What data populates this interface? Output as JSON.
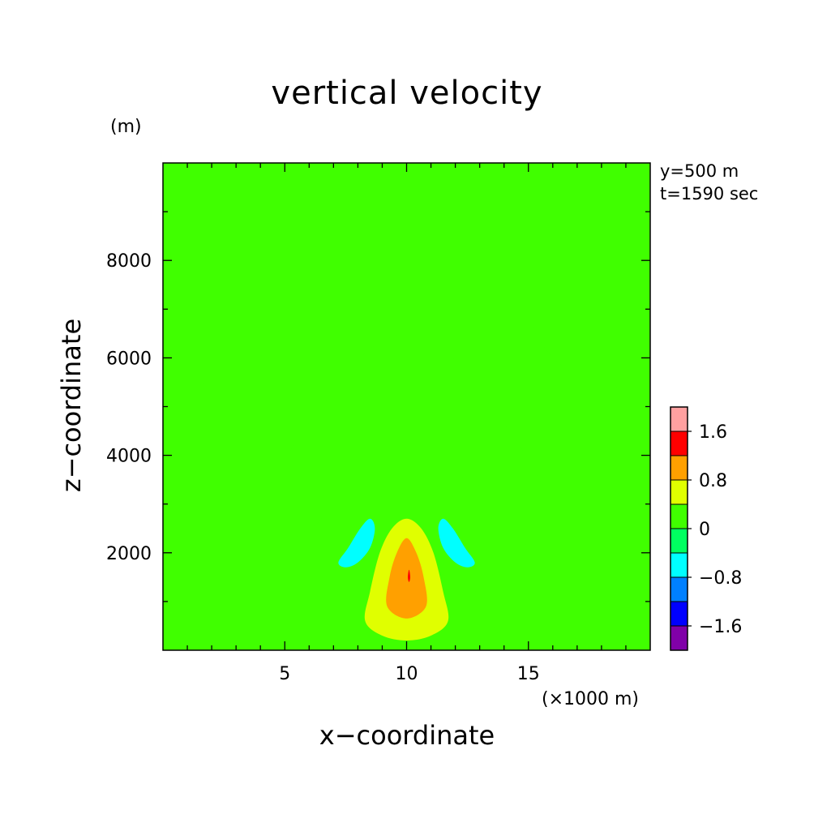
{
  "chart_data": {
    "type": "contour",
    "title": "vertical velocity",
    "xlabel": "x−coordinate",
    "ylabel": "z−coordinate",
    "x_unit": "(×1000 m)",
    "y_unit": "(m)",
    "annotations": [
      "y=500 m",
      "t=1590 sec"
    ],
    "xlim": [
      0,
      20
    ],
    "ylim": [
      0,
      10000
    ],
    "x_ticks": [
      5,
      10,
      15
    ],
    "x_tick_labels": [
      "5",
      "10",
      "15"
    ],
    "y_ticks": [
      2000,
      4000,
      6000,
      8000
    ],
    "y_tick_labels": [
      "2000",
      "4000",
      "6000",
      "8000"
    ],
    "colorbar": {
      "levels": [
        -2.0,
        -1.6,
        -1.2,
        -0.8,
        -0.4,
        0,
        0.4,
        0.8,
        1.2,
        1.6,
        2.0
      ],
      "colors": [
        "#8000a8",
        "#0000ff",
        "#0080ff",
        "#00ffff",
        "#00ff60",
        "#40ff00",
        "#e0ff00",
        "#ffa000",
        "#ff0000",
        "#ffa0a0"
      ],
      "tick_labels": [
        "−1.6",
        "−0.8",
        "0",
        "0.8",
        "1.6"
      ],
      "tick_values": [
        -1.6,
        -0.8,
        0,
        0.8,
        1.6
      ]
    },
    "background_value": 0,
    "regions": [
      {
        "name": "left-upper-positive",
        "value_range": [
          0,
          0.4
        ],
        "points": [
          [
            0,
            10000
          ],
          [
            5.1,
            10000
          ],
          [
            5.1,
            7500
          ],
          [
            5.0,
            7000
          ],
          [
            4.6,
            6400
          ],
          [
            3.5,
            5800
          ],
          [
            2.2,
            5600
          ],
          [
            0,
            5600
          ]
        ]
      },
      {
        "name": "right-upper-positive",
        "value_range": [
          0,
          0.4
        ],
        "points": [
          [
            20,
            10000
          ],
          [
            14.9,
            10000
          ],
          [
            14.9,
            7500
          ],
          [
            15.0,
            7000
          ],
          [
            15.4,
            6400
          ],
          [
            16.5,
            5800
          ],
          [
            17.8,
            5600
          ],
          [
            20,
            5600
          ]
        ]
      },
      {
        "name": "central-positive-plume",
        "value_range": [
          0,
          0.4
        ],
        "points": [
          [
            0,
            1500
          ],
          [
            0,
            2600
          ],
          [
            2.5,
            2900
          ],
          [
            4.2,
            3300
          ],
          [
            5.1,
            4000
          ],
          [
            6.2,
            4800
          ],
          [
            7.2,
            5400
          ],
          [
            8.3,
            6100
          ],
          [
            9.5,
            6450
          ],
          [
            10.5,
            6450
          ],
          [
            11.7,
            6100
          ],
          [
            12.8,
            5400
          ],
          [
            13.8,
            4800
          ],
          [
            14.9,
            4000
          ],
          [
            15.8,
            3300
          ],
          [
            17.5,
            2900
          ],
          [
            20,
            2600
          ],
          [
            20,
            1500
          ],
          [
            17.5,
            1800
          ],
          [
            15.2,
            2100
          ],
          [
            14.3,
            2400
          ],
          [
            13.5,
            2700
          ],
          [
            13.1,
            3300
          ],
          [
            12.5,
            3500
          ],
          [
            11.8,
            3600
          ],
          [
            11.0,
            3200
          ],
          [
            10.4,
            2800
          ],
          [
            9.6,
            2800
          ],
          [
            9.0,
            3200
          ],
          [
            8.2,
            3600
          ],
          [
            7.5,
            3500
          ],
          [
            6.9,
            3300
          ],
          [
            6.5,
            2700
          ],
          [
            5.7,
            2400
          ],
          [
            4.8,
            2100
          ],
          [
            2.5,
            1800
          ]
        ]
      },
      {
        "name": "lower-positive-wedge",
        "value_range": [
          0,
          0.4
        ],
        "points": [
          [
            5.8,
            0
          ],
          [
            6.2,
            300
          ],
          [
            7.0,
            1000
          ],
          [
            7.6,
            1800
          ],
          [
            8.3,
            2500
          ],
          [
            8.9,
            3100
          ],
          [
            9.5,
            3300
          ],
          [
            9.9,
            2700
          ],
          [
            10.1,
            2700
          ],
          [
            10.5,
            3300
          ],
          [
            11.1,
            3100
          ],
          [
            11.7,
            2500
          ],
          [
            12.4,
            1800
          ],
          [
            13.0,
            1000
          ],
          [
            13.8,
            300
          ],
          [
            14.2,
            0
          ]
        ]
      },
      {
        "name": "left-negative-lobe",
        "value_range": [
          -0.8,
          -0.4
        ],
        "points": [
          [
            7.2,
            1800
          ],
          [
            7.6,
            2100
          ],
          [
            8.1,
            2500
          ],
          [
            8.5,
            2700
          ],
          [
            8.7,
            2500
          ],
          [
            8.5,
            2100
          ],
          [
            8.0,
            1800
          ],
          [
            7.5,
            1700
          ]
        ]
      },
      {
        "name": "right-negative-lobe",
        "value_range": [
          -0.8,
          -0.4
        ],
        "points": [
          [
            12.8,
            1800
          ],
          [
            12.4,
            2100
          ],
          [
            11.9,
            2500
          ],
          [
            11.5,
            2700
          ],
          [
            11.3,
            2500
          ],
          [
            11.5,
            2100
          ],
          [
            12.0,
            1800
          ],
          [
            12.5,
            1700
          ]
        ]
      },
      {
        "name": "updraft-yellow",
        "value_range": [
          0.4,
          0.8
        ],
        "points": [
          [
            8.3,
            600
          ],
          [
            8.5,
            1200
          ],
          [
            8.9,
            2000
          ],
          [
            9.4,
            2500
          ],
          [
            10.0,
            2700
          ],
          [
            10.6,
            2500
          ],
          [
            11.1,
            2000
          ],
          [
            11.5,
            1200
          ],
          [
            11.7,
            600
          ],
          [
            11.0,
            300
          ],
          [
            10.0,
            200
          ],
          [
            9.0,
            300
          ]
        ]
      },
      {
        "name": "updraft-orange",
        "value_range": [
          0.8,
          1.2
        ],
        "points": [
          [
            9.2,
            900
          ],
          [
            9.3,
            1500
          ],
          [
            9.6,
            2000
          ],
          [
            10.0,
            2300
          ],
          [
            10.4,
            2000
          ],
          [
            10.7,
            1500
          ],
          [
            10.8,
            900
          ],
          [
            10.0,
            650
          ]
        ]
      },
      {
        "name": "updraft-red-core",
        "value_range": [
          1.2,
          1.6
        ],
        "points": [
          [
            10.05,
            1500
          ],
          [
            10.1,
            1650
          ],
          [
            10.15,
            1500
          ],
          [
            10.1,
            1400
          ]
        ]
      }
    ]
  }
}
